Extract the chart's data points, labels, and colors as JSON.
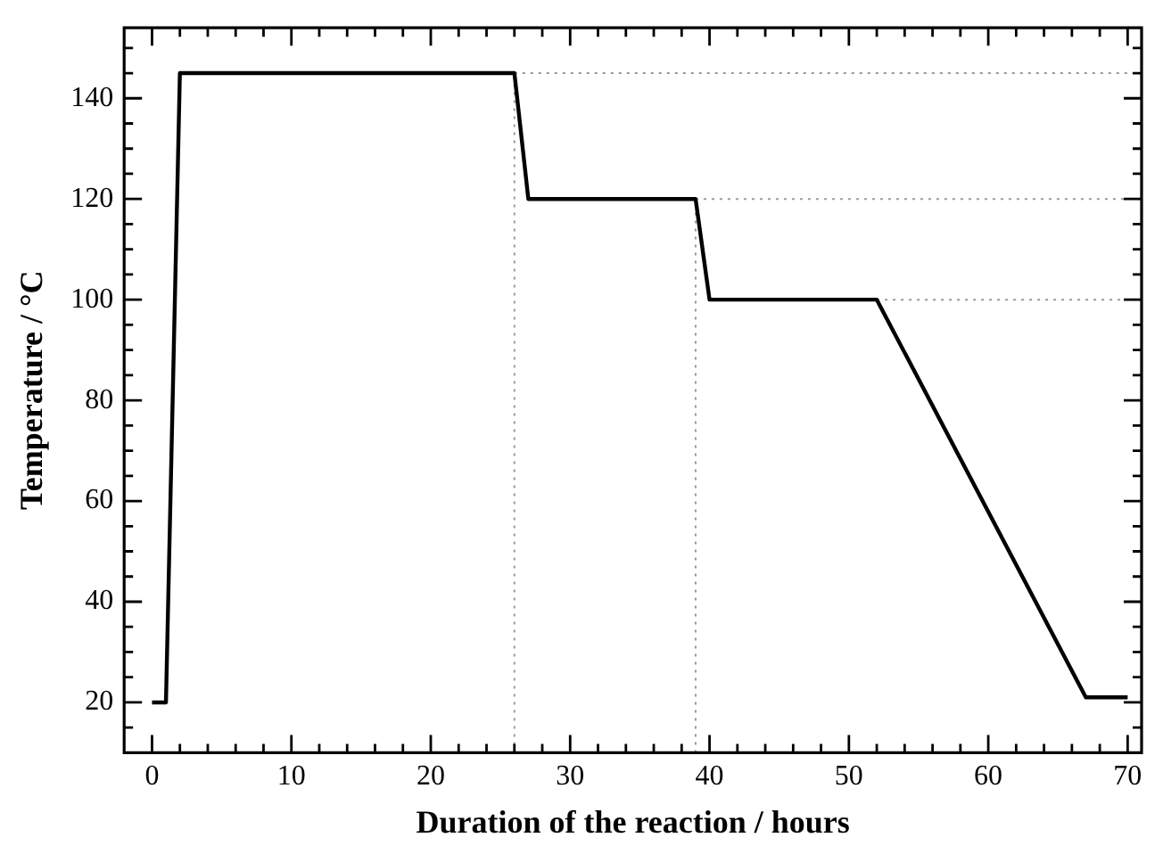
{
  "chart_data": {
    "type": "line",
    "xlabel": "Duration of the reaction / hours",
    "ylabel": "Temperature / °C",
    "series": [
      {
        "color": "#000000",
        "x": [
          0,
          1,
          2,
          26,
          27,
          39,
          40,
          52,
          67,
          70
        ],
        "values": [
          20,
          20,
          145,
          145,
          120,
          120,
          100,
          100,
          21,
          21
        ]
      }
    ],
    "xlim": [
      -2,
      71
    ],
    "ylim": [
      10,
      154
    ],
    "xticks": [
      0,
      {
        "value": 2,
        "label": null
      },
      {
        "value": 4,
        "label": null
      },
      {
        "value": 6,
        "label": null
      },
      {
        "value": 8,
        "label": null
      },
      10,
      {
        "value": 12,
        "label": null
      },
      {
        "value": 14,
        "label": null
      },
      {
        "value": 16,
        "label": null
      },
      {
        "value": 18,
        "label": null
      },
      20,
      {
        "value": 22,
        "label": null
      },
      {
        "value": 24,
        "label": null
      },
      {
        "value": 26,
        "label": null
      },
      {
        "value": 28,
        "label": null
      },
      30,
      {
        "value": 32,
        "label": null
      },
      {
        "value": 34,
        "label": null
      },
      {
        "value": 36,
        "label": null
      },
      {
        "value": 38,
        "label": null
      },
      40,
      {
        "value": 42,
        "label": null
      },
      {
        "value": 44,
        "label": null
      },
      {
        "value": 46,
        "label": null
      },
      {
        "value": 48,
        "label": null
      },
      50,
      {
        "value": 52,
        "label": null
      },
      {
        "value": 54,
        "label": null
      },
      {
        "value": 56,
        "label": null
      },
      {
        "value": 58,
        "label": null
      },
      60,
      {
        "value": 62,
        "label": null
      },
      {
        "value": 64,
        "label": null
      },
      {
        "value": 66,
        "label": null
      },
      {
        "value": 68,
        "label": null
      },
      70
    ],
    "yticks": [
      {
        "value": 15,
        "label": null
      },
      20,
      {
        "value": 25,
        "label": null
      },
      {
        "value": 30,
        "label": null
      },
      {
        "value": 35,
        "label": null
      },
      40,
      {
        "value": 45,
        "label": null
      },
      {
        "value": 50,
        "label": null
      },
      {
        "value": 55,
        "label": null
      },
      60,
      {
        "value": 65,
        "label": null
      },
      {
        "value": 70,
        "label": null
      },
      {
        "value": 75,
        "label": null
      },
      80,
      {
        "value": 85,
        "label": null
      },
      {
        "value": 90,
        "label": null
      },
      {
        "value": 95,
        "label": null
      },
      100,
      {
        "value": 105,
        "label": null
      },
      {
        "value": 110,
        "label": null
      },
      {
        "value": 115,
        "label": null
      },
      120,
      {
        "value": 125,
        "label": null
      },
      {
        "value": 130,
        "label": null
      },
      {
        "value": 135,
        "label": null
      },
      140,
      {
        "value": 145,
        "label": null
      },
      {
        "value": 150,
        "label": null
      }
    ],
    "ref_lines": [
      {
        "axis": "x",
        "value": 26,
        "color": "#999999",
        "line_style": "dotted"
      },
      {
        "axis": "x",
        "value": 39,
        "color": "#999999",
        "line_style": "dotted"
      },
      {
        "axis": "y",
        "value": 145,
        "color": "#999999",
        "line_style": "dotted"
      },
      {
        "axis": "y",
        "value": 120,
        "color": "#999999",
        "line_style": "dotted"
      },
      {
        "axis": "y",
        "value": 100,
        "color": "#999999",
        "line_style": "dotted"
      }
    ],
    "grid": false,
    "legend": false,
    "marker": "none",
    "line_style": "solid"
  }
}
